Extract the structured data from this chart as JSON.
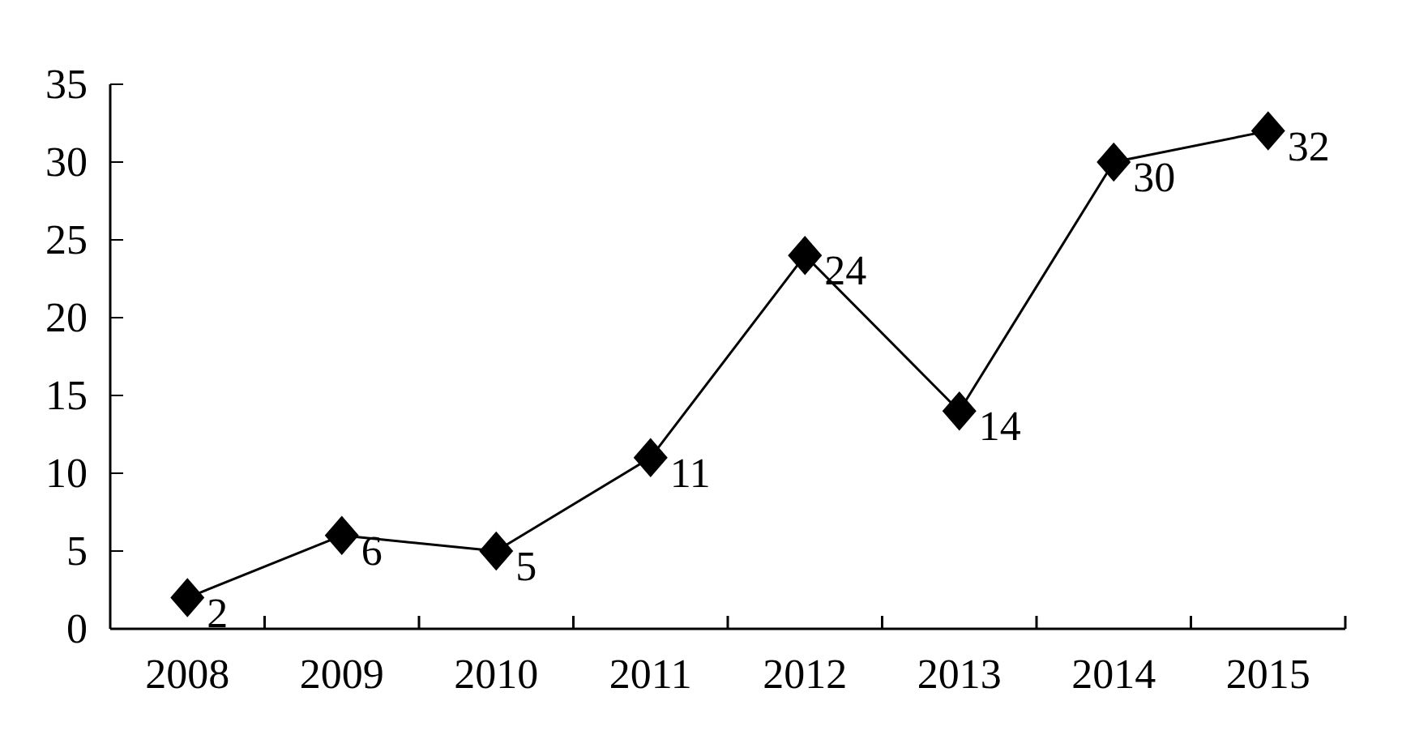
{
  "chart_data": {
    "type": "line",
    "categories": [
      "2008",
      "2009",
      "2010",
      "2011",
      "2012",
      "2013",
      "2014",
      "2015"
    ],
    "series": [
      {
        "color": "#000000",
        "values": [
          2,
          6,
          5,
          11,
          24,
          14,
          30,
          32
        ]
      }
    ],
    "ylim": [
      0,
      35
    ],
    "yticks": [
      0,
      5,
      10,
      15,
      20,
      25,
      30,
      35
    ],
    "marker": "diamond",
    "line_style": "solid",
    "data_labels": true
  }
}
